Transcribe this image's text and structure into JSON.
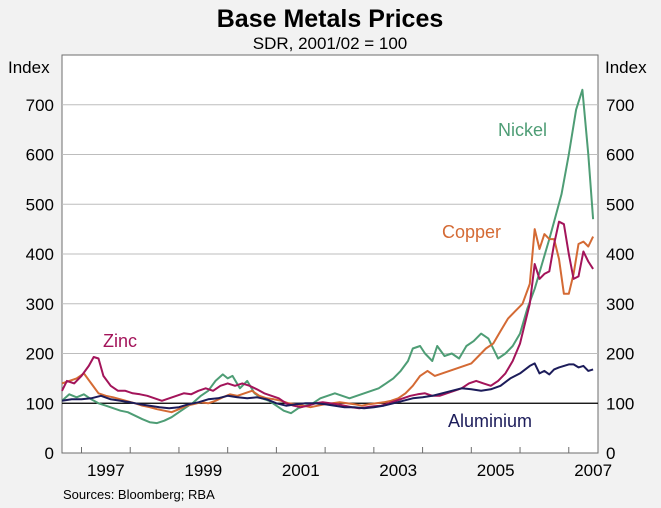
{
  "chart_data": {
    "type": "line",
    "title": "Base Metals Prices",
    "subtitle": "SDR, 2001/02 = 100",
    "ylabel_left": "Index",
    "ylabel_right": "Index",
    "ylim": [
      0,
      800
    ],
    "yticks": [
      0,
      100,
      200,
      300,
      400,
      500,
      600,
      700
    ],
    "xlim": [
      1996.6,
      2007.6
    ],
    "xtick_labels": [
      "1997",
      "1999",
      "2001",
      "2003",
      "2005",
      "2007"
    ],
    "reference_line": 100,
    "source": "Sources: Bloomberg; RBA",
    "series": [
      {
        "name": "Nickel",
        "color": "#4e9d75",
        "points": [
          [
            1996.6,
            105
          ],
          [
            1996.75,
            118
          ],
          [
            1996.9,
            112
          ],
          [
            1997.05,
            118
          ],
          [
            1997.2,
            108
          ],
          [
            1997.35,
            100
          ],
          [
            1997.5,
            95
          ],
          [
            1997.65,
            90
          ],
          [
            1997.8,
            85
          ],
          [
            1997.95,
            82
          ],
          [
            1998.1,
            75
          ],
          [
            1998.25,
            68
          ],
          [
            1998.4,
            62
          ],
          [
            1998.55,
            60
          ],
          [
            1998.7,
            65
          ],
          [
            1998.85,
            72
          ],
          [
            1999.0,
            82
          ],
          [
            1999.15,
            92
          ],
          [
            1999.3,
            102
          ],
          [
            1999.45,
            115
          ],
          [
            1999.6,
            125
          ],
          [
            1999.75,
            145
          ],
          [
            1999.9,
            158
          ],
          [
            2000.0,
            150
          ],
          [
            2000.1,
            155
          ],
          [
            2000.25,
            130
          ],
          [
            2000.4,
            145
          ],
          [
            2000.55,
            120
          ],
          [
            2000.7,
            110
          ],
          [
            2000.85,
            105
          ],
          [
            2001.0,
            95
          ],
          [
            2001.15,
            85
          ],
          [
            2001.3,
            80
          ],
          [
            2001.45,
            90
          ],
          [
            2001.6,
            95
          ],
          [
            2001.75,
            100
          ],
          [
            2001.9,
            110
          ],
          [
            2002.05,
            115
          ],
          [
            2002.2,
            120
          ],
          [
            2002.35,
            115
          ],
          [
            2002.5,
            110
          ],
          [
            2002.65,
            115
          ],
          [
            2002.8,
            120
          ],
          [
            2002.95,
            125
          ],
          [
            2003.1,
            130
          ],
          [
            2003.25,
            140
          ],
          [
            2003.4,
            150
          ],
          [
            2003.55,
            165
          ],
          [
            2003.7,
            185
          ],
          [
            2003.8,
            210
          ],
          [
            2003.95,
            215
          ],
          [
            2004.05,
            200
          ],
          [
            2004.2,
            185
          ],
          [
            2004.3,
            215
          ],
          [
            2004.45,
            195
          ],
          [
            2004.6,
            200
          ],
          [
            2004.75,
            190
          ],
          [
            2004.9,
            215
          ],
          [
            2005.05,
            225
          ],
          [
            2005.2,
            240
          ],
          [
            2005.35,
            230
          ],
          [
            2005.45,
            210
          ],
          [
            2005.55,
            190
          ],
          [
            2005.7,
            200
          ],
          [
            2005.85,
            215
          ],
          [
            2006.0,
            240
          ],
          [
            2006.15,
            290
          ],
          [
            2006.3,
            330
          ],
          [
            2006.45,
            380
          ],
          [
            2006.6,
            430
          ],
          [
            2006.7,
            465
          ],
          [
            2006.85,
            520
          ],
          [
            2007.0,
            600
          ],
          [
            2007.15,
            690
          ],
          [
            2007.28,
            730
          ],
          [
            2007.4,
            600
          ],
          [
            2007.5,
            470
          ]
        ]
      },
      {
        "name": "Copper",
        "color": "#d46a34",
        "points": [
          [
            1996.6,
            140
          ],
          [
            1996.75,
            145
          ],
          [
            1996.9,
            150
          ],
          [
            1997.05,
            160
          ],
          [
            1997.2,
            140
          ],
          [
            1997.35,
            120
          ],
          [
            1997.5,
            115
          ],
          [
            1997.65,
            112
          ],
          [
            1997.8,
            108
          ],
          [
            1997.95,
            104
          ],
          [
            1998.1,
            100
          ],
          [
            1998.25,
            95
          ],
          [
            1998.4,
            92
          ],
          [
            1998.55,
            88
          ],
          [
            1998.7,
            85
          ],
          [
            1998.85,
            82
          ],
          [
            1999.0,
            88
          ],
          [
            1999.15,
            95
          ],
          [
            1999.3,
            98
          ],
          [
            1999.45,
            102
          ],
          [
            1999.6,
            100
          ],
          [
            1999.75,
            105
          ],
          [
            1999.9,
            112
          ],
          [
            2000.05,
            118
          ],
          [
            2000.2,
            115
          ],
          [
            2000.35,
            120
          ],
          [
            2000.5,
            125
          ],
          [
            2000.65,
            115
          ],
          [
            2000.8,
            110
          ],
          [
            2000.95,
            108
          ],
          [
            2001.1,
            105
          ],
          [
            2001.25,
            100
          ],
          [
            2001.4,
            98
          ],
          [
            2001.55,
            95
          ],
          [
            2001.7,
            92
          ],
          [
            2001.85,
            95
          ],
          [
            2002.0,
            98
          ],
          [
            2002.15,
            100
          ],
          [
            2002.3,
            102
          ],
          [
            2002.45,
            100
          ],
          [
            2002.6,
            98
          ],
          [
            2002.75,
            95
          ],
          [
            2002.9,
            98
          ],
          [
            2003.05,
            100
          ],
          [
            2003.2,
            102
          ],
          [
            2003.35,
            105
          ],
          [
            2003.5,
            110
          ],
          [
            2003.65,
            120
          ],
          [
            2003.8,
            135
          ],
          [
            2003.95,
            155
          ],
          [
            2004.1,
            165
          ],
          [
            2004.25,
            155
          ],
          [
            2004.4,
            160
          ],
          [
            2004.55,
            165
          ],
          [
            2004.7,
            170
          ],
          [
            2004.85,
            175
          ],
          [
            2005.0,
            180
          ],
          [
            2005.15,
            195
          ],
          [
            2005.3,
            210
          ],
          [
            2005.45,
            220
          ],
          [
            2005.6,
            245
          ],
          [
            2005.75,
            270
          ],
          [
            2005.9,
            285
          ],
          [
            2006.05,
            300
          ],
          [
            2006.2,
            340
          ],
          [
            2006.3,
            450
          ],
          [
            2006.4,
            410
          ],
          [
            2006.5,
            440
          ],
          [
            2006.6,
            430
          ],
          [
            2006.7,
            430
          ],
          [
            2006.8,
            390
          ],
          [
            2006.9,
            320
          ],
          [
            2007.0,
            320
          ],
          [
            2007.1,
            360
          ],
          [
            2007.2,
            420
          ],
          [
            2007.3,
            425
          ],
          [
            2007.4,
            415
          ],
          [
            2007.5,
            435
          ]
        ]
      },
      {
        "name": "Zinc",
        "color": "#a3145a",
        "points": [
          [
            1996.6,
            125
          ],
          [
            1996.7,
            145
          ],
          [
            1996.85,
            140
          ],
          [
            1997.0,
            155
          ],
          [
            1997.15,
            175
          ],
          [
            1997.25,
            193
          ],
          [
            1997.35,
            190
          ],
          [
            1997.45,
            155
          ],
          [
            1997.6,
            135
          ],
          [
            1997.75,
            125
          ],
          [
            1997.9,
            125
          ],
          [
            1998.05,
            120
          ],
          [
            1998.2,
            118
          ],
          [
            1998.35,
            115
          ],
          [
            1998.5,
            110
          ],
          [
            1998.65,
            105
          ],
          [
            1998.8,
            110
          ],
          [
            1998.95,
            115
          ],
          [
            1999.1,
            120
          ],
          [
            1999.25,
            118
          ],
          [
            1999.4,
            125
          ],
          [
            1999.55,
            130
          ],
          [
            1999.7,
            125
          ],
          [
            1999.85,
            135
          ],
          [
            2000.0,
            140
          ],
          [
            2000.15,
            135
          ],
          [
            2000.3,
            140
          ],
          [
            2000.45,
            135
          ],
          [
            2000.6,
            128
          ],
          [
            2000.75,
            120
          ],
          [
            2000.9,
            115
          ],
          [
            2001.05,
            110
          ],
          [
            2001.2,
            100
          ],
          [
            2001.35,
            95
          ],
          [
            2001.5,
            92
          ],
          [
            2001.65,
            95
          ],
          [
            2001.8,
            100
          ],
          [
            2001.95,
            102
          ],
          [
            2002.1,
            100
          ],
          [
            2002.25,
            98
          ],
          [
            2002.4,
            95
          ],
          [
            2002.55,
            92
          ],
          [
            2002.7,
            90
          ],
          [
            2002.85,
            92
          ],
          [
            2003.0,
            94
          ],
          [
            2003.15,
            95
          ],
          [
            2003.3,
            100
          ],
          [
            2003.45,
            105
          ],
          [
            2003.6,
            110
          ],
          [
            2003.75,
            115
          ],
          [
            2003.9,
            118
          ],
          [
            2004.05,
            120
          ],
          [
            2004.2,
            115
          ],
          [
            2004.35,
            115
          ],
          [
            2004.5,
            120
          ],
          [
            2004.65,
            125
          ],
          [
            2004.8,
            130
          ],
          [
            2004.95,
            140
          ],
          [
            2005.1,
            145
          ],
          [
            2005.25,
            140
          ],
          [
            2005.4,
            135
          ],
          [
            2005.55,
            145
          ],
          [
            2005.7,
            160
          ],
          [
            2005.85,
            185
          ],
          [
            2006.0,
            220
          ],
          [
            2006.1,
            260
          ],
          [
            2006.2,
            300
          ],
          [
            2006.3,
            380
          ],
          [
            2006.4,
            350
          ],
          [
            2006.5,
            360
          ],
          [
            2006.6,
            365
          ],
          [
            2006.7,
            420
          ],
          [
            2006.8,
            465
          ],
          [
            2006.9,
            460
          ],
          [
            2007.0,
            400
          ],
          [
            2007.1,
            350
          ],
          [
            2007.2,
            355
          ],
          [
            2007.3,
            405
          ],
          [
            2007.4,
            385
          ],
          [
            2007.5,
            370
          ]
        ]
      },
      {
        "name": "Aluminium",
        "color": "#1c1c5a",
        "points": [
          [
            1996.6,
            105
          ],
          [
            1996.8,
            108
          ],
          [
            1997.0,
            108
          ],
          [
            1997.2,
            110
          ],
          [
            1997.4,
            115
          ],
          [
            1997.6,
            108
          ],
          [
            1997.8,
            105
          ],
          [
            1998.0,
            102
          ],
          [
            1998.2,
            98
          ],
          [
            1998.4,
            95
          ],
          [
            1998.6,
            92
          ],
          [
            1998.8,
            90
          ],
          [
            1999.0,
            92
          ],
          [
            1999.2,
            98
          ],
          [
            1999.4,
            102
          ],
          [
            1999.6,
            108
          ],
          [
            1999.8,
            110
          ],
          [
            2000.0,
            115
          ],
          [
            2000.2,
            112
          ],
          [
            2000.4,
            110
          ],
          [
            2000.6,
            112
          ],
          [
            2000.8,
            108
          ],
          [
            2001.0,
            100
          ],
          [
            2001.2,
            95
          ],
          [
            2001.4,
            98
          ],
          [
            2001.6,
            100
          ],
          [
            2001.8,
            100
          ],
          [
            2002.0,
            98
          ],
          [
            2002.2,
            95
          ],
          [
            2002.4,
            92
          ],
          [
            2002.6,
            92
          ],
          [
            2002.8,
            90
          ],
          [
            2003.0,
            92
          ],
          [
            2003.2,
            95
          ],
          [
            2003.4,
            100
          ],
          [
            2003.6,
            105
          ],
          [
            2003.8,
            110
          ],
          [
            2004.0,
            112
          ],
          [
            2004.2,
            115
          ],
          [
            2004.4,
            120
          ],
          [
            2004.6,
            125
          ],
          [
            2004.8,
            130
          ],
          [
            2005.0,
            128
          ],
          [
            2005.2,
            125
          ],
          [
            2005.4,
            128
          ],
          [
            2005.6,
            135
          ],
          [
            2005.8,
            150
          ],
          [
            2006.0,
            160
          ],
          [
            2006.2,
            175
          ],
          [
            2006.3,
            180
          ],
          [
            2006.4,
            160
          ],
          [
            2006.5,
            165
          ],
          [
            2006.6,
            158
          ],
          [
            2006.7,
            168
          ],
          [
            2006.8,
            172
          ],
          [
            2006.9,
            175
          ],
          [
            2007.0,
            178
          ],
          [
            2007.1,
            178
          ],
          [
            2007.2,
            172
          ],
          [
            2007.3,
            175
          ],
          [
            2007.4,
            165
          ],
          [
            2007.5,
            168
          ]
        ]
      }
    ]
  }
}
